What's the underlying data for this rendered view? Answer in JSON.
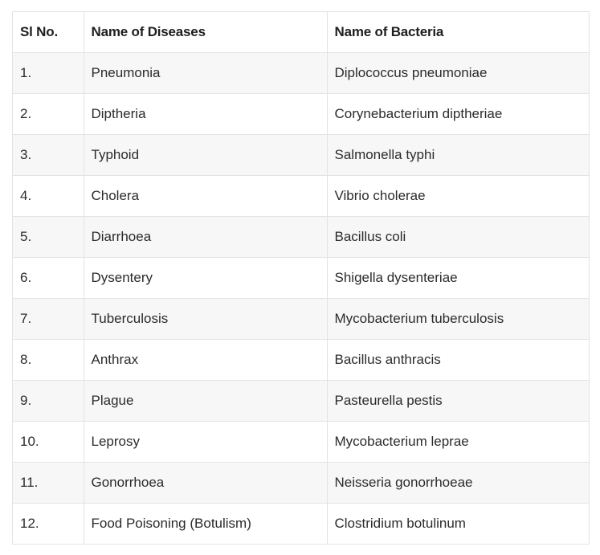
{
  "table": {
    "headers": [
      "Sl No.",
      "Name of Diseases",
      "Name of Bacteria"
    ],
    "rows": [
      [
        "1.",
        "Pneumonia",
        "Diplococcus pneumoniae"
      ],
      [
        "2.",
        "Diptheria",
        "Corynebacterium diptheriae"
      ],
      [
        "3.",
        "Typhoid",
        "Salmonella typhi"
      ],
      [
        "4.",
        "Cholera",
        "Vibrio cholerae"
      ],
      [
        "5.",
        "Diarrhoea",
        "Bacillus coli"
      ],
      [
        "6.",
        "Dysentery",
        "Shigella dysenteriae"
      ],
      [
        "7.",
        "Tuberculosis",
        "Mycobacterium tuberculosis"
      ],
      [
        "8.",
        "Anthrax",
        "Bacillus anthracis"
      ],
      [
        "9.",
        "Plague",
        "Pasteurella pestis"
      ],
      [
        "10.",
        "Leprosy",
        "Mycobacterium leprae"
      ],
      [
        "11.",
        "Gonorrhoea",
        "Neisseria gonorrhoeae"
      ],
      [
        "12.",
        "Food Poisoning (Botulism)",
        "Clostridium botulinum"
      ]
    ]
  },
  "colors": {
    "border": "#e3e3e3",
    "row_alt": "#f7f7f7",
    "text": "#222222"
  }
}
